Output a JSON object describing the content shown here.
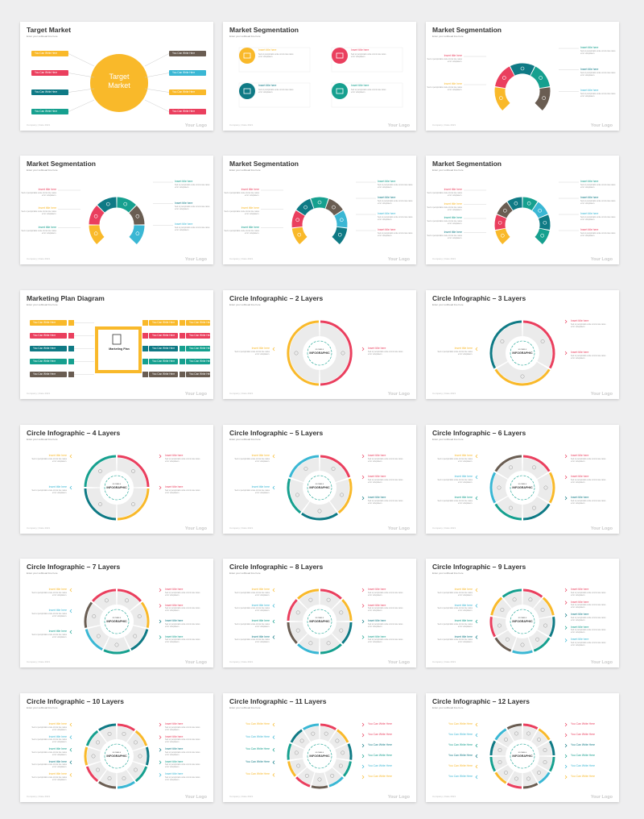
{
  "common": {
    "subtitle": "Enter your subhead line here",
    "footer": "Company | Date 2021",
    "logo": "Your Logo"
  },
  "colors": {
    "yellow": "#f9b92a",
    "red": "#ea3f5e",
    "teal": "#16a08f",
    "blue": "#3ab7d4",
    "darkteal": "#0f7a85",
    "brown": "#6a5d52",
    "orange": "#f7b43b",
    "gray": "#ebebeb"
  },
  "slides": [
    {
      "title": "Target Market"
    },
    {
      "title": "Market Segmentation"
    },
    {
      "title": "Market Segmentation"
    },
    {
      "title": "Market Segmentation"
    },
    {
      "title": "Market Segmentation"
    },
    {
      "title": "Market Segmentation"
    },
    {
      "title": "Marketing Plan Diagram"
    },
    {
      "title": "Circle Infographic – 2 Layers"
    },
    {
      "title": "Circle Infographic – 3 Layers"
    },
    {
      "title": "Circle Infographic – 4 Layers"
    },
    {
      "title": "Circle Infographic – 5 Layers"
    },
    {
      "title": "Circle Infographic – 6 Layers"
    },
    {
      "title": "Circle Infographic – 7 Layers"
    },
    {
      "title": "Circle Infographic – 8 Layers"
    },
    {
      "title": "Circle Infographic – 9 Layers"
    },
    {
      "title": "Circle Infographic – 10 Layers"
    },
    {
      "title": "Circle Infographic – 11 Layers"
    },
    {
      "title": "Circle Infographic – 12 Layers"
    }
  ],
  "target": {
    "center_line1": "Target",
    "center_line2": "Market",
    "bar_text": "You Can Write Here"
  },
  "seg_labels": {
    "insert": "Insert title here",
    "body": "Sed ut perspiciatis unde omnis iste natus error voluptatem."
  },
  "plan": {
    "center_title": "Marketing Plan",
    "bar_text": "You Can Write Here"
  },
  "circle": {
    "center_small": "EDITABLE",
    "center_big": "INFOGRAPHIC",
    "insert": "Insert title here",
    "write": "You Can Write Here",
    "body": "Sed ut perspiciatis unde omnis iste natus error voluptatem."
  }
}
